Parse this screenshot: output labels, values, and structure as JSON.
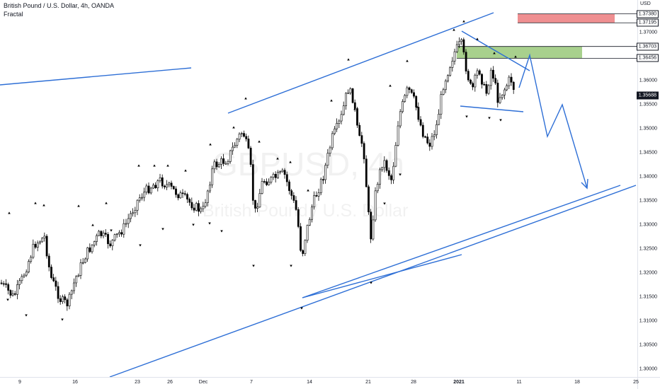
{
  "header": {
    "symbol_line": "British Pound / U.S. Dollar, 4h, OANDA",
    "indicator": "Fractal"
  },
  "watermark": {
    "ticker": "GBPUSD, 4h",
    "name": "British Pound / U.S. Dollar"
  },
  "price_axis": {
    "currency": "USD",
    "labels": [
      "1.37000",
      "1.36500",
      "1.36000",
      "1.35500",
      "1.35000",
      "1.34500",
      "1.34000",
      "1.33500",
      "1.33000",
      "1.32500",
      "1.32000",
      "1.31500",
      "1.31000",
      "1.30500",
      "1.30000"
    ]
  },
  "price_boxes": [
    {
      "value": "1.37380",
      "kind": "level"
    },
    {
      "value": "1.37195",
      "kind": "level"
    },
    {
      "value": "1.36703",
      "kind": "level"
    },
    {
      "value": "1.36456",
      "kind": "level"
    },
    {
      "value": "1.35688",
      "kind": "current"
    }
  ],
  "time_axis": [
    {
      "label": "9",
      "bold": false
    },
    {
      "label": "16",
      "bold": false
    },
    {
      "label": "23",
      "bold": false
    },
    {
      "label": "26",
      "bold": false
    },
    {
      "label": "Dec",
      "bold": false
    },
    {
      "label": "7",
      "bold": false
    },
    {
      "label": "14",
      "bold": false
    },
    {
      "label": "21",
      "bold": false
    },
    {
      "label": "28",
      "bold": false
    },
    {
      "label": "2021",
      "bold": true
    },
    {
      "label": "11",
      "bold": false
    },
    {
      "label": "18",
      "bold": false
    },
    {
      "label": "25",
      "bold": false
    }
  ],
  "colors": {
    "bull": "#ffffff",
    "bear": "#000000",
    "wick": "#000000",
    "drawing": "#2e6fd6",
    "supply_zone": "#ef8f91",
    "demand_zone": "#a8d08d"
  },
  "chart_data": {
    "type": "candlestick",
    "symbol": "GBPUSD",
    "timeframe": "4h",
    "source": "OANDA",
    "ylim": [
      1.2965,
      1.3762
    ],
    "x": [
      "9",
      "16",
      "23",
      "26",
      "Dec",
      "7",
      "14",
      "21",
      "28",
      "2021",
      "11",
      "18",
      "25"
    ],
    "candles_ohlc_approx": [
      [
        1.3095,
        1.317,
        1.308,
        1.316
      ],
      [
        1.318,
        1.326,
        1.316,
        1.324
      ],
      [
        1.324,
        1.329,
        1.32,
        1.322
      ],
      [
        1.312,
        1.314,
        1.31,
        1.313
      ],
      [
        1.317,
        1.322,
        1.315,
        1.321
      ],
      [
        1.327,
        1.332,
        1.325,
        1.33
      ],
      [
        1.331,
        1.336,
        1.329,
        1.334
      ],
      [
        1.336,
        1.342,
        1.334,
        1.34
      ],
      [
        1.333,
        1.339,
        1.331,
        1.337
      ],
      [
        1.331,
        1.335,
        1.328,
        1.333
      ],
      [
        1.342,
        1.35,
        1.34,
        1.348
      ],
      [
        1.345,
        1.355,
        1.342,
        1.352
      ],
      [
        1.34,
        1.346,
        1.325,
        1.329
      ],
      [
        1.336,
        1.342,
        1.333,
        1.338
      ],
      [
        1.323,
        1.327,
        1.314,
        1.318
      ],
      [
        1.329,
        1.338,
        1.326,
        1.335
      ],
      [
        1.345,
        1.356,
        1.343,
        1.354
      ],
      [
        1.354,
        1.362,
        1.35,
        1.36
      ],
      [
        1.326,
        1.329,
        1.319,
        1.322
      ],
      [
        1.339,
        1.346,
        1.335,
        1.343
      ],
      [
        1.352,
        1.359,
        1.349,
        1.357
      ],
      [
        1.347,
        1.351,
        1.343,
        1.348
      ],
      [
        1.357,
        1.364,
        1.355,
        1.362
      ],
      [
        1.365,
        1.3703,
        1.363,
        1.368
      ],
      [
        1.36,
        1.368,
        1.355,
        1.358
      ],
      [
        1.359,
        1.365,
        1.356,
        1.362
      ],
      [
        1.357,
        1.364,
        1.354,
        1.3569
      ]
    ],
    "fractal_up_highs_approx": [
      1.323,
      1.33,
      1.327,
      1.326,
      1.334,
      1.337,
      1.342,
      1.346,
      1.353,
      1.356,
      1.362,
      1.366,
      1.352,
      1.347,
      1.365,
      1.36,
      1.368,
      1.37,
      1.372
    ],
    "fractal_down_lows_approx": [
      1.311,
      1.308,
      1.315,
      1.32,
      1.324,
      1.326,
      1.328,
      1.32,
      1.316,
      1.314,
      1.322,
      1.317,
      1.326,
      1.328,
      1.352,
      1.35,
      1.352
    ],
    "zones": [
      {
        "label": "supply",
        "low": 1.37195,
        "high": 1.3738
      },
      {
        "label": "demand",
        "low": 1.36456,
        "high": 1.36703
      }
    ],
    "grid": false,
    "legend": "none"
  }
}
